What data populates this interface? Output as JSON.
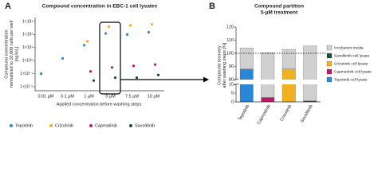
{
  "chart_data": [
    {
      "type": "dot",
      "panel_label": "A",
      "title": "Compound concentration in EBC-1 cell lysates",
      "y_label": [
        "Compound concentration",
        "normalized to 10,000 cells per well",
        "[ng/mL]"
      ],
      "x_label": "Applied concentration before washing steps",
      "categories": [
        "0.01 µM",
        "0.1 µM",
        "1 µM",
        "5 µM",
        "7.5 µM",
        "10 µM"
      ],
      "series": [
        {
          "name": "Tepotinib",
          "color": "#2a86d6",
          "values": [
            0.1,
            1.5,
            15,
            120,
            100,
            150
          ]
        },
        {
          "name": "Crizotinib",
          "color": "#f2b01e",
          "values": [
            null,
            null,
            30,
            400,
            500,
            600
          ]
        },
        {
          "name": "Capmatinib",
          "color": "#c0156b",
          "values": [
            null,
            null,
            0.15,
            0.3,
            0.4,
            0.5
          ]
        },
        {
          "name": "Savolitinib",
          "color": "#1a4d3a",
          "values": [
            null,
            null,
            0.03,
            0.05,
            0.05,
            0.08
          ]
        }
      ],
      "log_scale": true,
      "ylim": [
        0.005,
        2000
      ],
      "yticks": [
        {
          "value": 0.01,
          "label": "1×10⁻²"
        },
        {
          "value": 0.1,
          "label": "1×10⁻¹"
        },
        {
          "value": 1,
          "label": "1×10⁰"
        },
        {
          "value": 10,
          "label": "1×10¹"
        },
        {
          "value": 100,
          "label": "1×10²"
        },
        {
          "value": 1000,
          "label": "1×10³"
        }
      ]
    },
    {
      "type": "stacked_bar",
      "panel_label": "B",
      "title": "Compound partition",
      "subtitle": "5-µM treatment",
      "y_label": [
        "Compound recovery",
        "after washing steps [%]"
      ],
      "categories": [
        "Tepotinib",
        "Capmatinib",
        "Crizotinib",
        "Savolitinib"
      ],
      "series": [
        {
          "name": "Incubation media",
          "color": "#d0d0d0",
          "values": [
            16,
            98,
            15,
            105
          ]
        },
        {
          "name": "Savolitinib cell lysate",
          "color": "#1a4d3a",
          "values": [
            null,
            null,
            null,
            0.6
          ]
        },
        {
          "name": "Crizotinib cell lysate",
          "color": "#f2b01e",
          "values": [
            null,
            null,
            88,
            null
          ]
        },
        {
          "name": "Capmatinib cell lysate",
          "color": "#c0156b",
          "values": [
            null,
            2.5,
            null,
            null
          ]
        },
        {
          "name": "Tepotinib cell lysate",
          "color": "#2a86d6",
          "values": [
            88,
            null,
            null,
            null
          ]
        }
      ],
      "ylim": [
        0,
        120
      ],
      "axis_break": [
        10,
        80
      ],
      "yticks": [
        0,
        5,
        10,
        80,
        90,
        100,
        110,
        120
      ],
      "reference_line": 100
    }
  ]
}
